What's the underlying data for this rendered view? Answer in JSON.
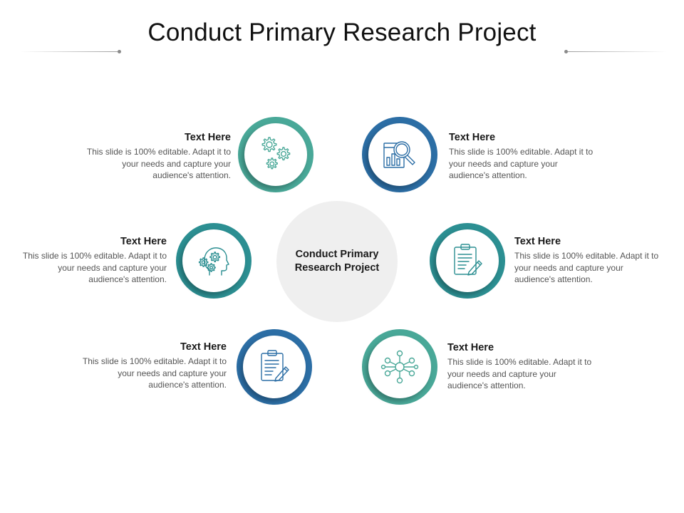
{
  "title": "Conduct Primary Research Project",
  "center": {
    "label": "Conduct Primary Research Project"
  },
  "colors": {
    "teal": "#49a898",
    "teal_dark": "#2c8f92",
    "blue": "#2c6ea5",
    "center_fill": "#efefef"
  },
  "items": [
    {
      "id": "top-left",
      "heading": "Text Here",
      "body": "This slide is 100% editable. Adapt it to your needs and capture your audience's attention.",
      "icon": "gears-icon",
      "ring": "teal"
    },
    {
      "id": "mid-left",
      "heading": "Text Here",
      "body": "This slide is 100% editable. Adapt it to your needs and capture your audience's attention.",
      "icon": "head-gears-icon",
      "ring": "teal_dark"
    },
    {
      "id": "bottom-left",
      "heading": "Text Here",
      "body": "This slide is 100% editable. Adapt it to your needs and capture your audience's attention.",
      "icon": "clipboard-pencil-icon",
      "ring": "blue"
    },
    {
      "id": "top-right",
      "heading": "Text Here",
      "body": "This slide is 100% editable. Adapt it to your needs and capture your audience's attention.",
      "icon": "magnifier-chart-icon",
      "ring": "blue"
    },
    {
      "id": "mid-right",
      "heading": "Text Here",
      "body": "This slide is 100% editable. Adapt it to your needs and capture your audience's attention.",
      "icon": "clipboard-pencil-icon",
      "ring": "teal_dark"
    },
    {
      "id": "bottom-right",
      "heading": "Text Here",
      "body": "This slide is 100% editable. Adapt it to your needs and capture your audience's attention.",
      "icon": "network-hub-icon",
      "ring": "teal"
    }
  ]
}
